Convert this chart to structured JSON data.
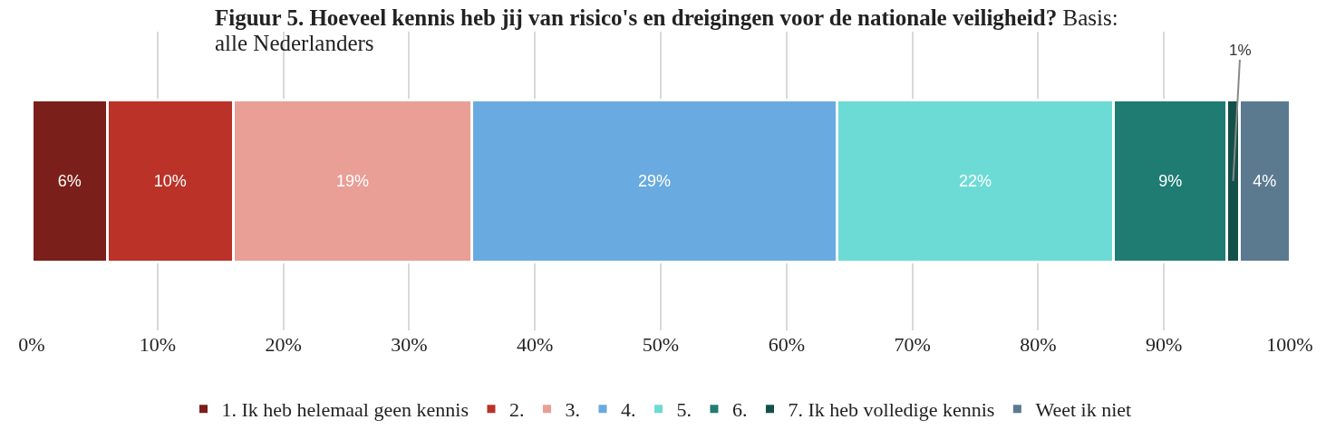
{
  "chart_data": {
    "type": "bar",
    "orientation": "horizontal",
    "stacked": true,
    "title": "Figuur 5. Hoeveel kennis heb jij van risico's en dreigingen voor de nationale veiligheid?",
    "subtitle": "Basis: alle Nederlanders",
    "categories": [
      null
    ],
    "series": [
      {
        "name": "1. Ik heb helemaal geen kennis",
        "color": "#7b1f1a",
        "values": [
          6
        ],
        "value_labels": [
          "6%"
        ]
      },
      {
        "name": "2.",
        "color": "#bb3228",
        "values": [
          10
        ],
        "value_labels": [
          "10%"
        ]
      },
      {
        "name": "3.",
        "color": "#e99e96",
        "values": [
          19
        ],
        "value_labels": [
          "19%"
        ]
      },
      {
        "name": "4.",
        "color": "#69abe0",
        "values": [
          29
        ],
        "value_labels": [
          "29%"
        ]
      },
      {
        "name": "5.",
        "color": "#6ddbd5",
        "values": [
          22
        ],
        "value_labels": [
          "22%"
        ]
      },
      {
        "name": "6.",
        "color": "#1f7c73",
        "values": [
          9
        ],
        "value_labels": [
          "9%"
        ]
      },
      {
        "name": "7. Ik heb volledige kennis",
        "color": "#14504a",
        "values": [
          1
        ],
        "value_labels": [
          "1%"
        ]
      },
      {
        "name": "Weet ik niet",
        "color": "#5b7a90",
        "values": [
          4
        ],
        "value_labels": [
          "4%"
        ]
      }
    ],
    "xlim": [
      0,
      100
    ],
    "xticks": [
      {
        "value": 0,
        "label": "0%"
      },
      {
        "value": 10,
        "label": "10%"
      },
      {
        "value": 20,
        "label": "20%"
      },
      {
        "value": 30,
        "label": "30%"
      },
      {
        "value": 40,
        "label": "40%"
      },
      {
        "value": 50,
        "label": "50%"
      },
      {
        "value": 60,
        "label": "60%"
      },
      {
        "value": 70,
        "label": "70%"
      },
      {
        "value": 80,
        "label": "80%"
      },
      {
        "value": 90,
        "label": "90%"
      },
      {
        "value": 100,
        "label": "100%"
      }
    ],
    "grid": "x",
    "legend": "bottom"
  }
}
